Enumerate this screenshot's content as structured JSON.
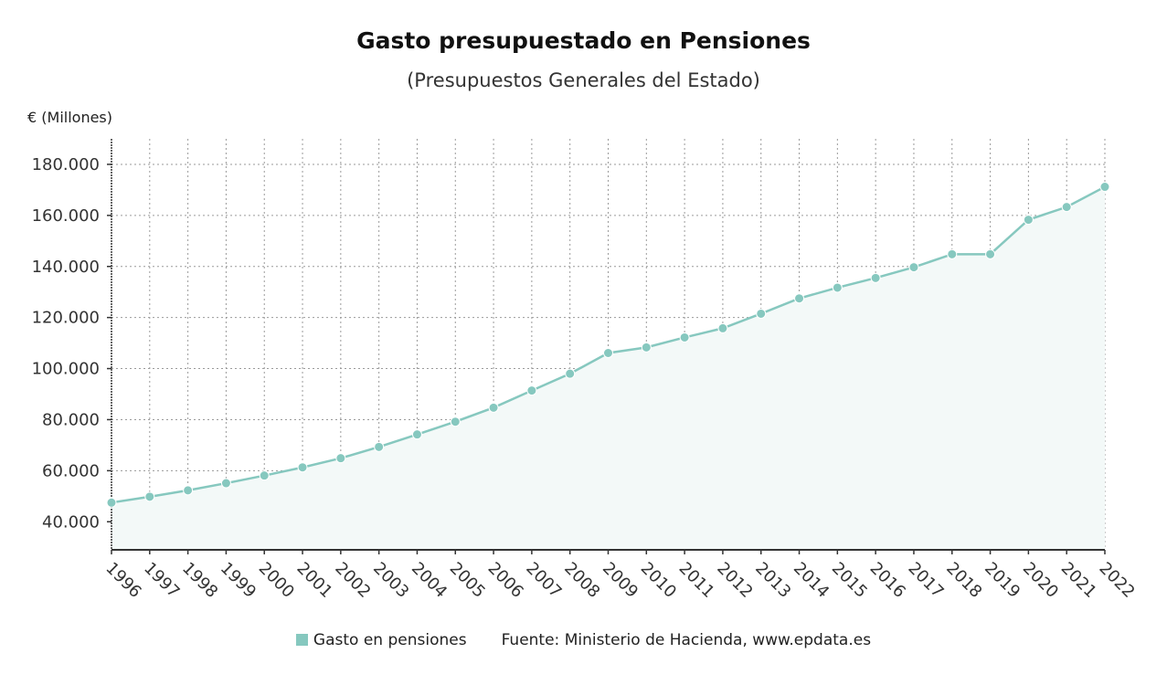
{
  "chart_data": {
    "type": "area",
    "title": "Gasto presupuestado en Pensiones",
    "subtitle": "(Presupuestos Generales del Estado)",
    "ylabel": "€ (Millones)",
    "xlabel": "",
    "x": [
      "1996",
      "1997",
      "1998",
      "1999",
      "2000",
      "2001",
      "2002",
      "2003",
      "2004",
      "2005",
      "2006",
      "2007",
      "2008",
      "2009",
      "2010",
      "2011",
      "2012",
      "2013",
      "2014",
      "2015",
      "2016",
      "2017",
      "2018",
      "2019",
      "2020",
      "2021",
      "2022"
    ],
    "series": [
      {
        "name": "Gasto en pensiones",
        "values": [
          47500,
          49800,
          52300,
          55100,
          58100,
          61300,
          64900,
          69300,
          74200,
          79200,
          84700,
          91400,
          98000,
          106100,
          108300,
          112200,
          115800,
          121500,
          127500,
          131700,
          135500,
          139700,
          144800,
          144800,
          158300,
          163300,
          171200
        ]
      }
    ],
    "ylim": [
      29000,
      190000
    ],
    "yticks": [
      40000,
      60000,
      80000,
      100000,
      120000,
      140000,
      160000,
      180000
    ],
    "ytick_labels": [
      "40.000",
      "60.000",
      "80.000",
      "100.000",
      "120.000",
      "140.000",
      "160.000",
      "180.000"
    ],
    "grid": true,
    "legend_position": "bottom-center",
    "source": "Fuente: Ministerio de Hacienda, www.epdata.es",
    "colors": {
      "line": "#86c8bf",
      "marker": "#86c8bf",
      "fill": "#f3f9f8",
      "grid": "#9a9a9a",
      "axis": "#333333"
    }
  }
}
